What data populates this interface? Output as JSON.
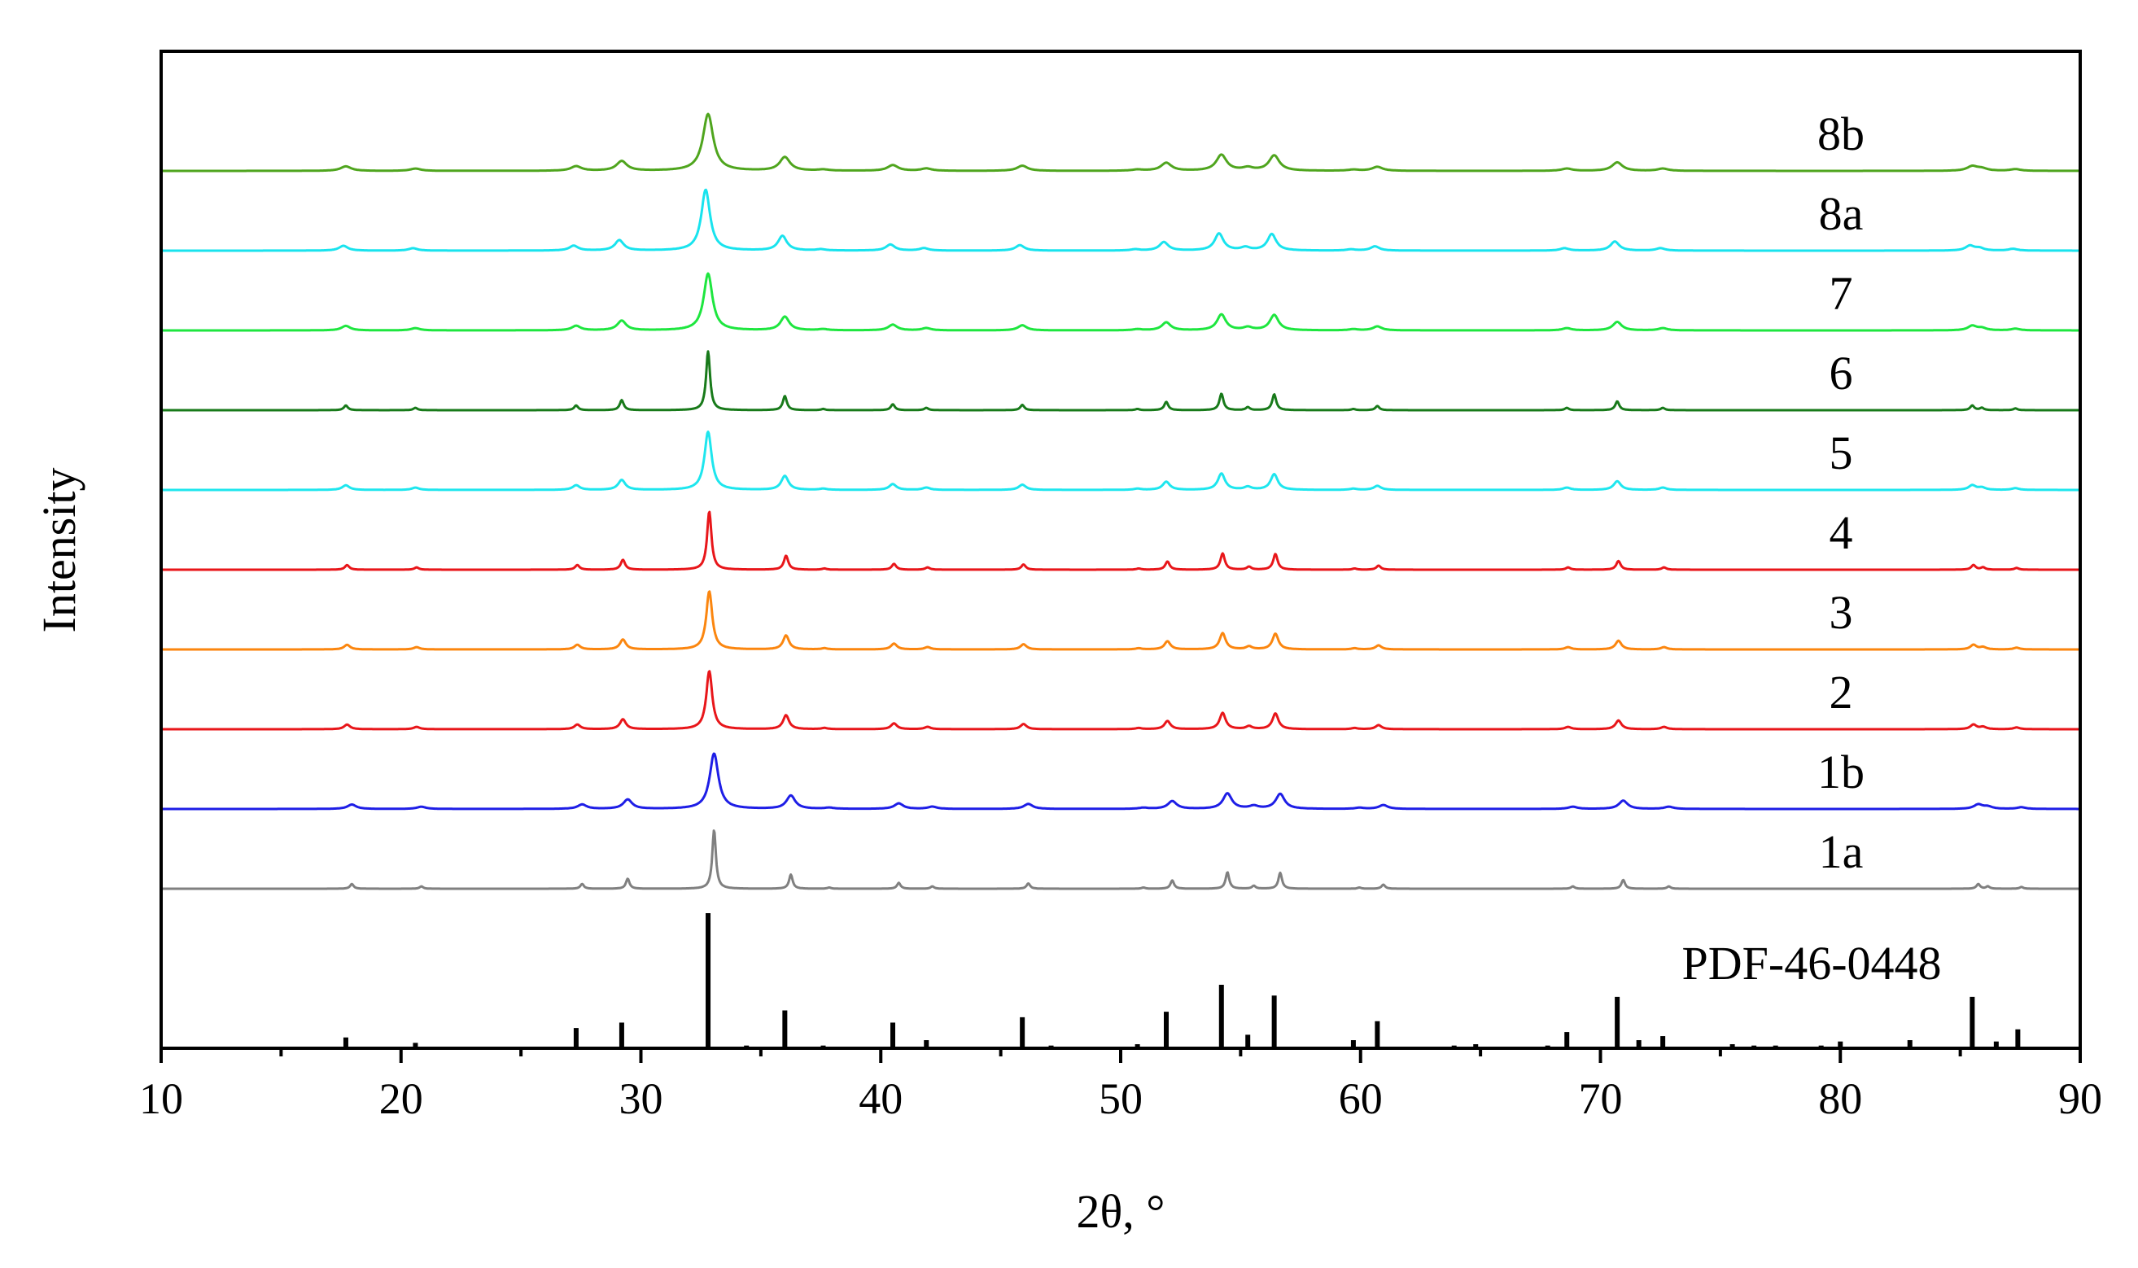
{
  "chart_data": {
    "type": "line",
    "title": "",
    "xlabel": "2θ, °",
    "ylabel": "Intensity",
    "xlim": [
      10,
      90
    ],
    "x_ticks": [
      10,
      20,
      30,
      40,
      50,
      60,
      70,
      80,
      90
    ],
    "x_minor_step": 5,
    "y_ticks": false,
    "grid": false,
    "legend": "labels at right end of each trace",
    "series": [
      {
        "name": "8b",
        "color": "#4fa51e",
        "peak_width": 0.26,
        "height": 0.82,
        "shift": 0.0
      },
      {
        "name": "8a",
        "color": "#19e3ee",
        "peak_width": 0.22,
        "height": 0.88,
        "shift": -0.1
      },
      {
        "name": "7",
        "color": "#1ee63f",
        "peak_width": 0.22,
        "height": 0.82,
        "shift": 0.0
      },
      {
        "name": "6",
        "color": "#187a1a",
        "peak_width": 0.1,
        "height": 0.85,
        "shift": 0.0
      },
      {
        "name": "5",
        "color": "#1ee6ee",
        "peak_width": 0.18,
        "height": 0.84,
        "shift": 0.0
      },
      {
        "name": "4",
        "color": "#e8161a",
        "peak_width": 0.11,
        "height": 0.84,
        "shift": 0.05
      },
      {
        "name": "3",
        "color": "#fb860f",
        "peak_width": 0.15,
        "height": 0.84,
        "shift": 0.05
      },
      {
        "name": "2",
        "color": "#e8161a",
        "peak_width": 0.15,
        "height": 0.84,
        "shift": 0.05
      },
      {
        "name": "1b",
        "color": "#1e1ee6",
        "peak_width": 0.22,
        "height": 0.8,
        "shift": 0.25
      },
      {
        "name": "1a",
        "color": "#808080",
        "peak_width": 0.09,
        "height": 0.85,
        "shift": 0.25
      }
    ],
    "peaks": [
      {
        "x": 17.7,
        "rel": 0.08
      },
      {
        "x": 20.6,
        "rel": 0.04
      },
      {
        "x": 27.3,
        "rel": 0.08
      },
      {
        "x": 29.2,
        "rel": 0.17
      },
      {
        "x": 32.8,
        "rel": 1.0
      },
      {
        "x": 36.0,
        "rel": 0.24
      },
      {
        "x": 37.6,
        "rel": 0.02
      },
      {
        "x": 40.5,
        "rel": 0.1
      },
      {
        "x": 41.9,
        "rel": 0.04
      },
      {
        "x": 45.9,
        "rel": 0.09
      },
      {
        "x": 50.7,
        "rel": 0.02
      },
      {
        "x": 51.9,
        "rel": 0.14
      },
      {
        "x": 54.2,
        "rel": 0.28
      },
      {
        "x": 55.3,
        "rel": 0.05
      },
      {
        "x": 56.4,
        "rel": 0.27
      },
      {
        "x": 59.7,
        "rel": 0.02
      },
      {
        "x": 60.7,
        "rel": 0.07
      },
      {
        "x": 68.6,
        "rel": 0.04
      },
      {
        "x": 70.7,
        "rel": 0.15
      },
      {
        "x": 72.6,
        "rel": 0.04
      },
      {
        "x": 85.5,
        "rel": 0.08
      },
      {
        "x": 85.9,
        "rel": 0.04
      },
      {
        "x": 87.3,
        "rel": 0.03
      }
    ],
    "reference": {
      "name": "PDF-46-0448",
      "color": "#000000",
      "lines": [
        {
          "x": 17.7,
          "rel": 0.08
        },
        {
          "x": 20.6,
          "rel": 0.04
        },
        {
          "x": 27.3,
          "rel": 0.15
        },
        {
          "x": 29.2,
          "rel": 0.19
        },
        {
          "x": 32.8,
          "rel": 1.0
        },
        {
          "x": 34.4,
          "rel": 0.02
        },
        {
          "x": 36.0,
          "rel": 0.28
        },
        {
          "x": 37.6,
          "rel": 0.02
        },
        {
          "x": 40.5,
          "rel": 0.19
        },
        {
          "x": 41.9,
          "rel": 0.06
        },
        {
          "x": 45.9,
          "rel": 0.23
        },
        {
          "x": 47.1,
          "rel": 0.02
        },
        {
          "x": 50.7,
          "rel": 0.03
        },
        {
          "x": 51.9,
          "rel": 0.27
        },
        {
          "x": 54.2,
          "rel": 0.47
        },
        {
          "x": 55.3,
          "rel": 0.1
        },
        {
          "x": 56.4,
          "rel": 0.39
        },
        {
          "x": 59.7,
          "rel": 0.06
        },
        {
          "x": 60.7,
          "rel": 0.2
        },
        {
          "x": 63.9,
          "rel": 0.02
        },
        {
          "x": 64.8,
          "rel": 0.03
        },
        {
          "x": 67.8,
          "rel": 0.02
        },
        {
          "x": 68.6,
          "rel": 0.12
        },
        {
          "x": 70.7,
          "rel": 0.38
        },
        {
          "x": 71.6,
          "rel": 0.06
        },
        {
          "x": 72.6,
          "rel": 0.09
        },
        {
          "x": 75.5,
          "rel": 0.03
        },
        {
          "x": 76.4,
          "rel": 0.02
        },
        {
          "x": 77.3,
          "rel": 0.02
        },
        {
          "x": 79.2,
          "rel": 0.02
        },
        {
          "x": 80.0,
          "rel": 0.05
        },
        {
          "x": 82.9,
          "rel": 0.06
        },
        {
          "x": 85.5,
          "rel": 0.38
        },
        {
          "x": 86.5,
          "rel": 0.05
        },
        {
          "x": 87.4,
          "rel": 0.14
        }
      ]
    }
  }
}
